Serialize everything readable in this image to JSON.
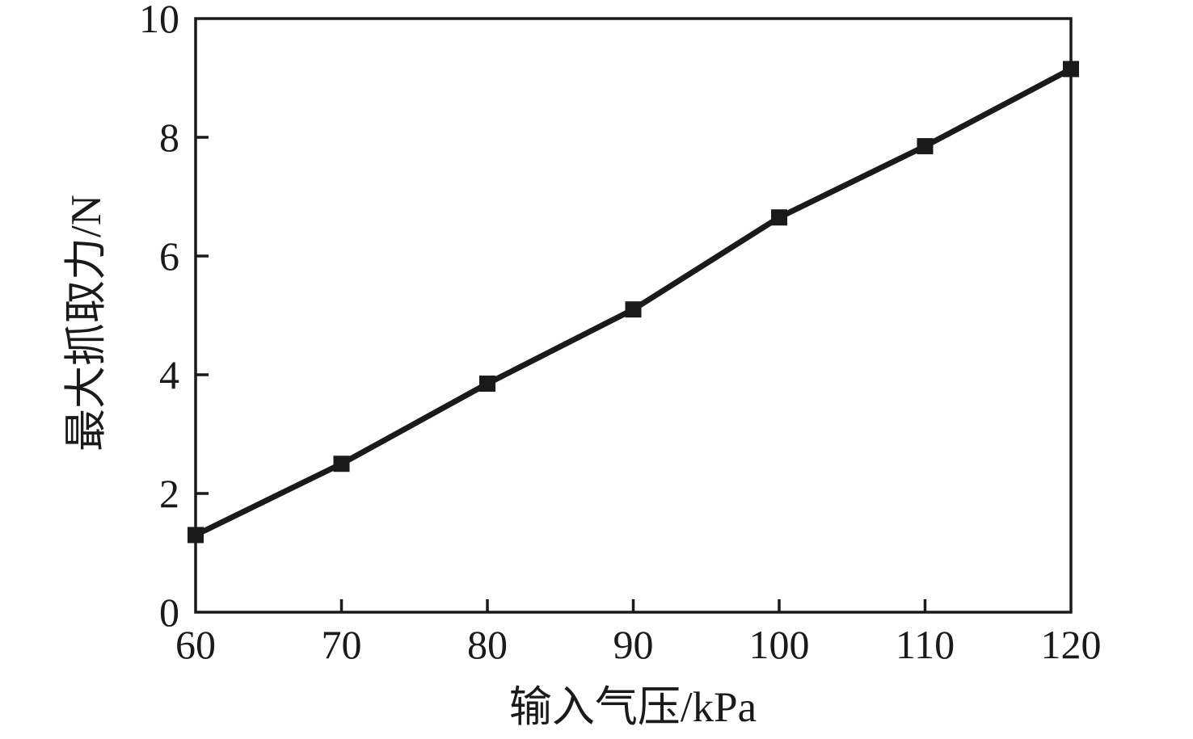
{
  "chart_data": {
    "type": "line",
    "title": "",
    "xlabel": "输入气压/kPa",
    "ylabel": "最大抓取力/N",
    "x": [
      60,
      70,
      80,
      90,
      100,
      110,
      120
    ],
    "values": [
      1.3,
      2.5,
      3.85,
      5.1,
      6.65,
      7.85,
      9.15
    ],
    "series_name": "最大抓取力",
    "xlim": [
      60,
      120
    ],
    "ylim": [
      0,
      10
    ],
    "x_ticks": [
      60,
      70,
      80,
      90,
      100,
      110,
      120
    ],
    "y_ticks": [
      0,
      2,
      4,
      6,
      8,
      10
    ],
    "grid": "off",
    "legend": "none",
    "marker": "square",
    "line_color": "#1a1a1a",
    "marker_color": "#1a1a1a",
    "axis_color": "#1a1a1a",
    "background_color": "#ffffff"
  }
}
